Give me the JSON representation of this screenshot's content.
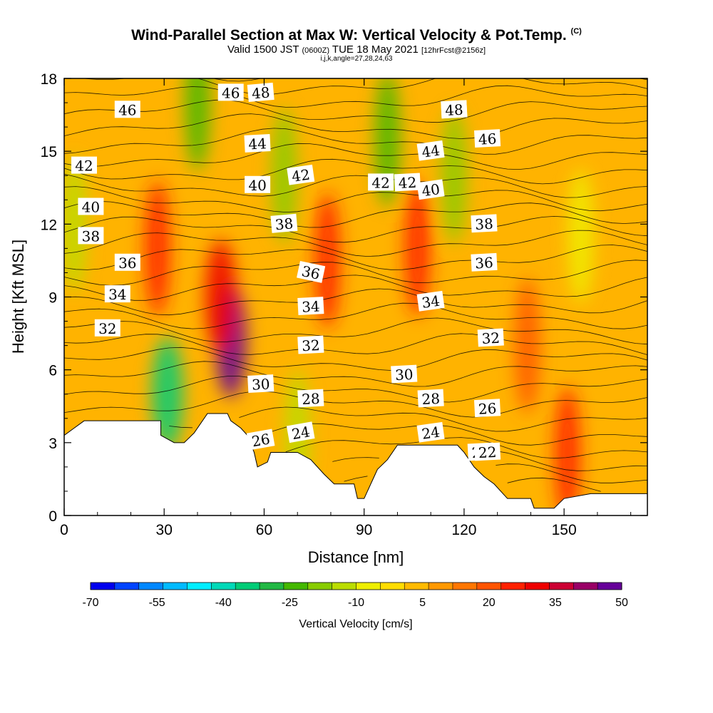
{
  "header": {
    "title": "Wind-Parallel Section at Max W: Vertical Velocity & Pot.Temp.",
    "copyright": "(C)",
    "valid_prefix": "Valid 1500 JST",
    "valid_utc": "(0600Z)",
    "valid_date": "TUE 18 May 2021",
    "forecast": "[12hrFcst@2156z]",
    "indices": "i,j,k,angle=27,28,24,63"
  },
  "chart_data": {
    "type": "heatmap",
    "title": "Wind-Parallel Section at Max W: Vertical Velocity & Pot.Temp.",
    "xlabel": "Distance [nm]",
    "ylabel": "Height [Kft MSL]",
    "xlim": [
      0,
      175
    ],
    "ylim": [
      0,
      18
    ],
    "x_ticks": [
      0,
      30,
      60,
      90,
      120,
      150
    ],
    "y_ticks": [
      0,
      3,
      6,
      9,
      12,
      15,
      18
    ],
    "colorbar": {
      "label": "Vertical Velocity [cm/s]",
      "tick_labels": [
        -70,
        -55,
        -40,
        -25,
        -10,
        5,
        20,
        35,
        50
      ],
      "colors": [
        "#0000ee",
        "#0044ff",
        "#0088ff",
        "#00bbff",
        "#00eeff",
        "#00d9b8",
        "#00cc77",
        "#22b844",
        "#44b800",
        "#88cc00",
        "#bbdd00",
        "#eeee00",
        "#ffdd00",
        "#ffbb00",
        "#ff9900",
        "#ff7700",
        "#ff5500",
        "#ff2200",
        "#ee0000",
        "#cc0033",
        "#990066",
        "#660099"
      ]
    },
    "contour_field": "Potential temperature (C)",
    "contour_labels": [
      "48",
      "46",
      "44",
      "42",
      "40",
      "38",
      "36",
      "34",
      "32",
      "30",
      "28",
      "26",
      "24",
      "22",
      "48",
      "46",
      "44",
      "42",
      "40",
      "38",
      "36",
      "34",
      "32",
      "30",
      "28",
      "26",
      "24",
      "22",
      "46",
      "42",
      "40",
      "38",
      "36",
      "34",
      "32",
      "46",
      "42"
    ],
    "w_features": [
      {
        "x": 50,
        "y": 7.2,
        "value": 50
      },
      {
        "x": 47,
        "y": 9.0,
        "value": 35
      },
      {
        "x": 28,
        "y": 11.0,
        "value": 25
      },
      {
        "x": 79,
        "y": 10.5,
        "value": 25
      },
      {
        "x": 106,
        "y": 11.0,
        "value": 25
      },
      {
        "x": 139,
        "y": 7.0,
        "value": 20
      },
      {
        "x": 151,
        "y": 2.5,
        "value": 25
      },
      {
        "x": 31,
        "y": 5.0,
        "value": -35
      },
      {
        "x": 40,
        "y": 17.0,
        "value": -25
      },
      {
        "x": 66,
        "y": 14.0,
        "value": -20
      },
      {
        "x": 97,
        "y": 15.5,
        "value": -25
      },
      {
        "x": 117,
        "y": 14.0,
        "value": -20
      },
      {
        "x": 3,
        "y": 12.0,
        "value": -15
      },
      {
        "x": 70,
        "y": 3.2,
        "value": -15
      },
      {
        "x": 155,
        "y": 11.5,
        "value": -10
      }
    ],
    "terrain_height_kft": [
      [
        0,
        3.3
      ],
      [
        3,
        3.6
      ],
      [
        6,
        3.9
      ],
      [
        10,
        3.9
      ],
      [
        20,
        3.9
      ],
      [
        29,
        3.9
      ],
      [
        29,
        3.3
      ],
      [
        33,
        3.0
      ],
      [
        36,
        3.0
      ],
      [
        39,
        3.4
      ],
      [
        43,
        4.2
      ],
      [
        49,
        4.2
      ],
      [
        50,
        3.9
      ],
      [
        53,
        3.6
      ],
      [
        55,
        3.3
      ],
      [
        57,
        2.6
      ],
      [
        58,
        2.0
      ],
      [
        61,
        2.2
      ],
      [
        62,
        2.6
      ],
      [
        70,
        2.6
      ],
      [
        74,
        2.3
      ],
      [
        78,
        1.7
      ],
      [
        81,
        1.3
      ],
      [
        87,
        1.3
      ],
      [
        88,
        0.7
      ],
      [
        90,
        0.7
      ],
      [
        91,
        1.0
      ],
      [
        94,
        1.9
      ],
      [
        97,
        2.3
      ],
      [
        100,
        2.9
      ],
      [
        110,
        2.9
      ],
      [
        118,
        2.9
      ],
      [
        120,
        2.6
      ],
      [
        123,
        2.0
      ],
      [
        126,
        1.6
      ],
      [
        129,
        1.3
      ],
      [
        133,
        0.7
      ],
      [
        140,
        0.7
      ],
      [
        141,
        0.3
      ],
      [
        147,
        0.3
      ],
      [
        150,
        0.7
      ],
      [
        158,
        0.9
      ],
      [
        175,
        0.9
      ]
    ]
  }
}
